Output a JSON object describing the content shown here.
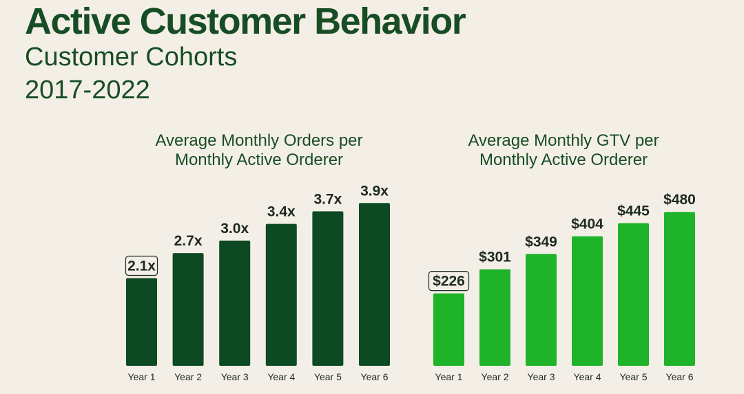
{
  "header": {
    "title": "Active Customer Behavior",
    "subtitle": "Customer Cohorts",
    "period": "2017-2022"
  },
  "colors": {
    "background": "#f4efe6",
    "orders_bar": "#0d4a24",
    "gtv_bar": "#1fb32a",
    "title_text": "#174d25"
  },
  "chart_data": [
    {
      "type": "bar",
      "title": "Average Monthly Orders per Monthly Active Orderer",
      "title_lines": [
        "Average Monthly Orders per",
        "Monthly Active Orderer"
      ],
      "categories": [
        "Year 1",
        "Year 2",
        "Year 3",
        "Year 4",
        "Year 5",
        "Year 6"
      ],
      "values": [
        2.1,
        2.7,
        3.0,
        3.4,
        3.7,
        3.9
      ],
      "value_labels": [
        "2.1x",
        "2.7x",
        "3.0x",
        "3.4x",
        "3.7x",
        "3.9x"
      ],
      "boxed_label_index": 0,
      "ylim": [
        0,
        4.5
      ],
      "grid": false,
      "color": "#0d4a24"
    },
    {
      "type": "bar",
      "title": "Average Monthly GTV per Monthly Active Orderer",
      "title_lines": [
        "Average Monthly GTV per",
        "Monthly Active Orderer"
      ],
      "categories": [
        "Year 1",
        "Year 2",
        "Year 3",
        "Year 4",
        "Year 5",
        "Year 6"
      ],
      "values": [
        226,
        301,
        349,
        404,
        445,
        480
      ],
      "value_labels": [
        "$226",
        "$301",
        "$349",
        "$404",
        "$445",
        "$480"
      ],
      "boxed_label_index": 0,
      "ylim": [
        0,
        550
      ],
      "grid": false,
      "color": "#1fb32a"
    }
  ]
}
